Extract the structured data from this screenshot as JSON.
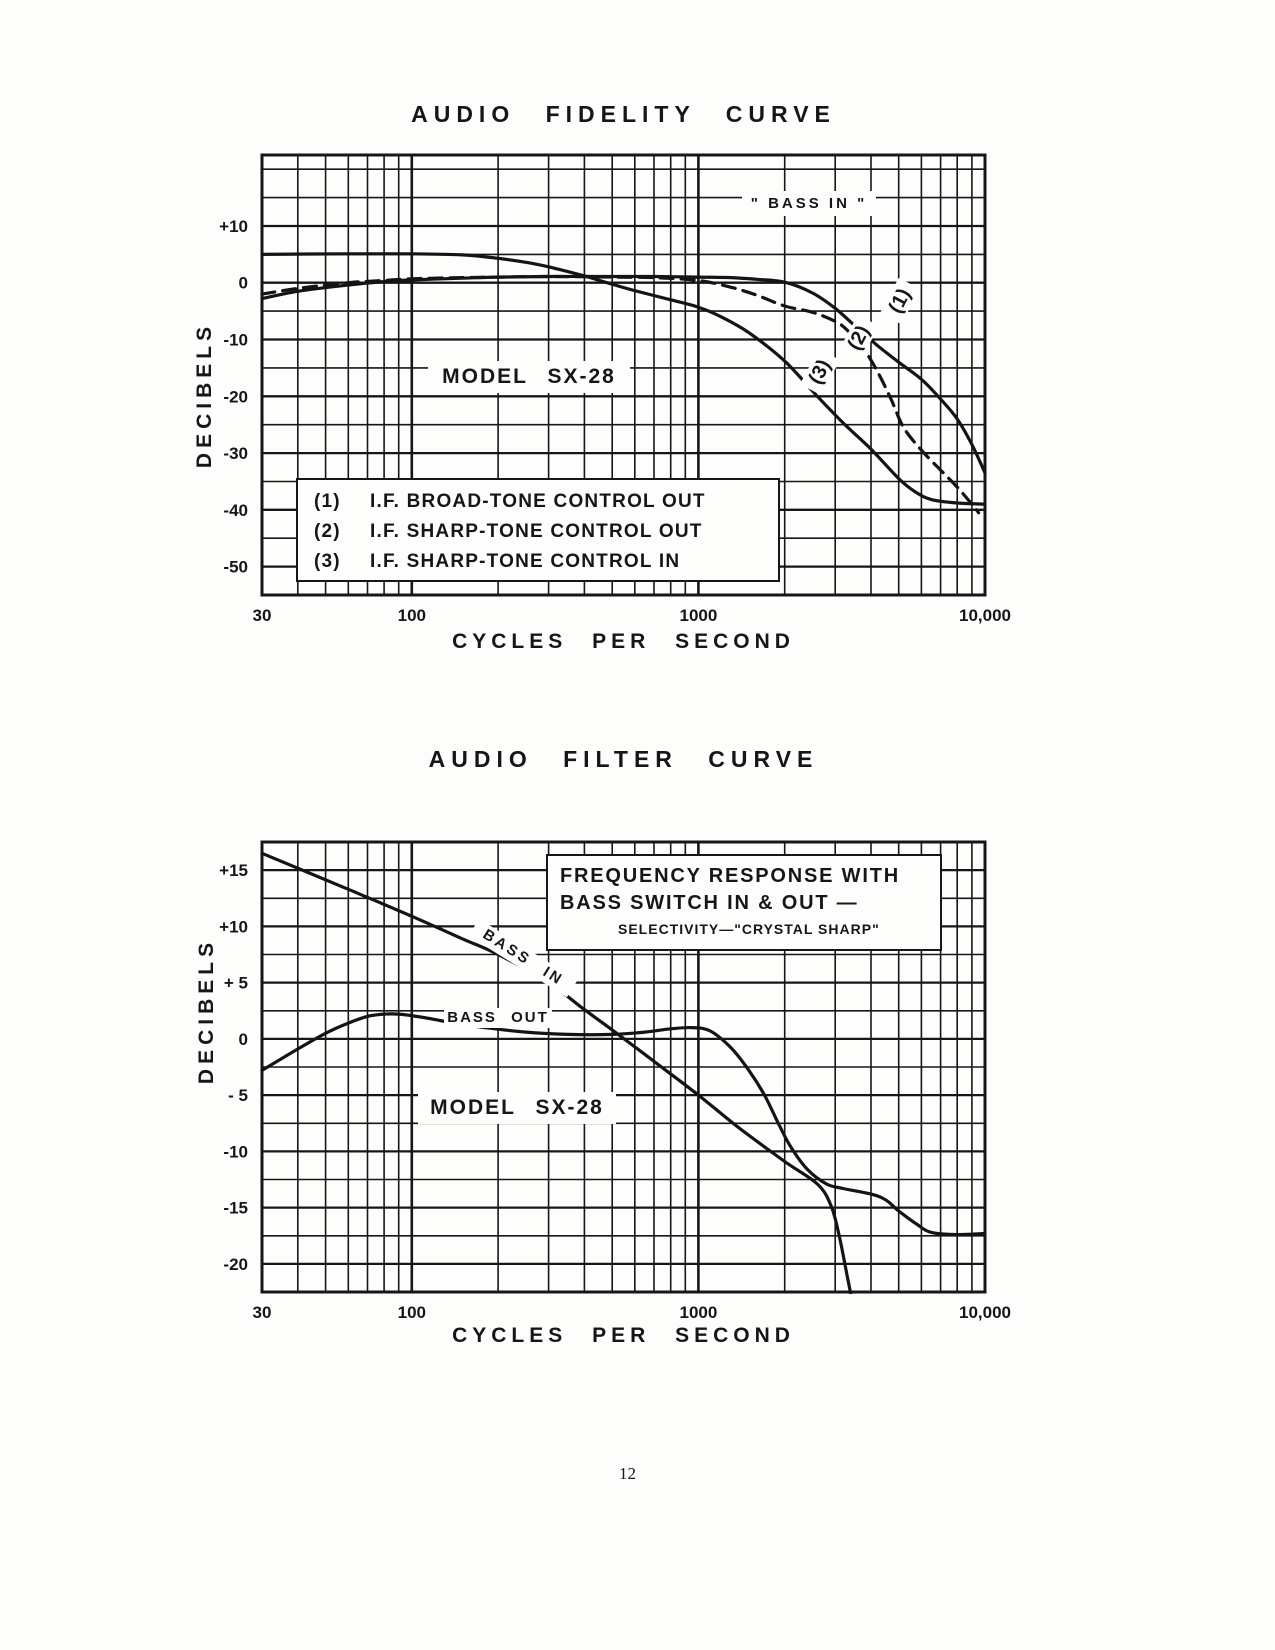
{
  "page": {
    "number": "12"
  },
  "chart_data": [
    {
      "type": "line",
      "title": "AUDIO FIDELITY CURVE",
      "xlabel": "CYCLES PER SECOND",
      "ylabel": "DECIBELS",
      "x_scale": "log",
      "xlim": [
        30,
        10000
      ],
      "ylim": [
        -55,
        22.5
      ],
      "y_grid_step": 5,
      "grid": true,
      "legend_position": "inside-lower-left",
      "x_ticks": [
        {
          "value": 30,
          "label": "30"
        },
        {
          "value": 100,
          "label": "100"
        },
        {
          "value": 1000,
          "label": "1000"
        },
        {
          "value": 10000,
          "label": "10,000"
        }
      ],
      "y_ticks": [
        {
          "value": 10,
          "label": "+10"
        },
        {
          "value": 0,
          "label": "0"
        },
        {
          "value": -10,
          "label": "-10"
        },
        {
          "value": -20,
          "label": "-20"
        },
        {
          "value": -30,
          "label": "-30"
        },
        {
          "value": -40,
          "label": "-40"
        },
        {
          "value": -50,
          "label": "-50"
        }
      ],
      "annotations": {
        "bass_in_note": "\" BASS IN \"",
        "model": "MODEL SX-28",
        "curve_tags": [
          "(1)",
          "(2)",
          "(3)"
        ]
      },
      "legend": [
        {
          "tag": "(1)",
          "text": "I.F. BROAD-TONE CONTROL OUT"
        },
        {
          "tag": "(2)",
          "text": "I.F. SHARP-TONE CONTROL OUT"
        },
        {
          "tag": "(3)",
          "text": "I.F. SHARP-TONE CONTROL IN"
        }
      ],
      "series": [
        {
          "name": "(1) I.F. BROAD - TONE CONTROL OUT",
          "line": "solid",
          "points": [
            [
              30,
              -2.8
            ],
            [
              40,
              -1.5
            ],
            [
              60,
              -0.4
            ],
            [
              80,
              0.2
            ],
            [
              100,
              0.5
            ],
            [
              150,
              0.8
            ],
            [
              200,
              1.0
            ],
            [
              300,
              1.1
            ],
            [
              500,
              1.1
            ],
            [
              700,
              1.1
            ],
            [
              1000,
              1.0
            ],
            [
              1300,
              0.9
            ],
            [
              1600,
              0.6
            ],
            [
              2000,
              0.1
            ],
            [
              2500,
              -1.8
            ],
            [
              3000,
              -4.5
            ],
            [
              3500,
              -7.5
            ],
            [
              4200,
              -11
            ],
            [
              5000,
              -14
            ],
            [
              6000,
              -17
            ],
            [
              7000,
              -20.5
            ],
            [
              8000,
              -24
            ],
            [
              9000,
              -28.5
            ],
            [
              10000,
              -33.5
            ]
          ]
        },
        {
          "name": "(2) I.F. SHARP - TONE CONTROL OUT",
          "line": "dashed",
          "points": [
            [
              30,
              -2.0
            ],
            [
              40,
              -1.0
            ],
            [
              60,
              0.0
            ],
            [
              80,
              0.4
            ],
            [
              100,
              0.7
            ],
            [
              150,
              0.9
            ],
            [
              200,
              1.0
            ],
            [
              300,
              1.1
            ],
            [
              500,
              1.0
            ],
            [
              700,
              0.9
            ],
            [
              1000,
              0.4
            ],
            [
              1300,
              -0.8
            ],
            [
              1600,
              -2.2
            ],
            [
              2000,
              -4.1
            ],
            [
              2500,
              -5.2
            ],
            [
              3000,
              -6.8
            ],
            [
              3300,
              -8.3
            ],
            [
              3700,
              -11
            ],
            [
              4200,
              -15.5
            ],
            [
              4700,
              -20.5
            ],
            [
              5200,
              -25.5
            ],
            [
              6000,
              -29.5
            ],
            [
              7000,
              -33
            ],
            [
              8000,
              -36
            ],
            [
              9000,
              -39
            ],
            [
              9500,
              -40.5
            ]
          ]
        },
        {
          "name": "(3) I.F. SHARP - TONE CONTROL IN",
          "line": "solid",
          "points": [
            [
              30,
              5.0
            ],
            [
              60,
              5.1
            ],
            [
              100,
              5.1
            ],
            [
              150,
              4.9
            ],
            [
              200,
              4.3
            ],
            [
              250,
              3.6
            ],
            [
              300,
              2.8
            ],
            [
              400,
              1.2
            ],
            [
              480,
              0.0
            ],
            [
              600,
              -1.4
            ],
            [
              800,
              -3.0
            ],
            [
              1000,
              -4.3
            ],
            [
              1200,
              -6.0
            ],
            [
              1500,
              -8.8
            ],
            [
              2000,
              -13.8
            ],
            [
              2600,
              -20.0
            ],
            [
              3200,
              -24.7
            ],
            [
              4000,
              -29.3
            ],
            [
              5000,
              -34.5
            ],
            [
              5700,
              -36.8
            ],
            [
              6500,
              -38.2
            ],
            [
              8000,
              -38.8
            ],
            [
              10000,
              -39.0
            ]
          ]
        }
      ]
    },
    {
      "type": "line",
      "title": "AUDIO FILTER CURVE",
      "xlabel": "CYCLES PER SECOND",
      "ylabel": "DECIBELS",
      "x_scale": "log",
      "xlim": [
        30,
        10000
      ],
      "ylim": [
        -22.5,
        17.5
      ],
      "y_grid_step": 2.5,
      "grid": true,
      "x_ticks": [
        {
          "value": 30,
          "label": "30"
        },
        {
          "value": 100,
          "label": "100"
        },
        {
          "value": 1000,
          "label": "1000"
        },
        {
          "value": 10000,
          "label": "10,000"
        }
      ],
      "y_ticks": [
        {
          "value": 15,
          "label": "+15"
        },
        {
          "value": 10,
          "label": "+10"
        },
        {
          "value": 5,
          "label": "+ 5"
        },
        {
          "value": 0,
          "label": "0"
        },
        {
          "value": -5,
          "label": "- 5"
        },
        {
          "value": -10,
          "label": "-10"
        },
        {
          "value": -15,
          "label": "-15"
        },
        {
          "value": -20,
          "label": "-20"
        }
      ],
      "annotations": {
        "box_line1": "FREQUENCY RESPONSE WITH",
        "box_line2": "BASS SWITCH IN & OUT —",
        "box_line3": "SELECTIVITY—\"CRYSTAL SHARP\"",
        "model": "MODEL SX-28"
      },
      "series": [
        {
          "name": "BASS IN",
          "label": "BASS IN",
          "line": "solid",
          "points": [
            [
              30,
              16.5
            ],
            [
              60,
              13.3
            ],
            [
              100,
              10.9
            ],
            [
              150,
              8.9
            ],
            [
              200,
              7.5
            ],
            [
              300,
              5.0
            ],
            [
              400,
              2.6
            ],
            [
              500,
              0.8
            ],
            [
              700,
              -2.0
            ],
            [
              1000,
              -5.0
            ],
            [
              1400,
              -8.0
            ],
            [
              2000,
              -10.9
            ],
            [
              2600,
              -12.9
            ],
            [
              2900,
              -14.8
            ],
            [
              3100,
              -17.5
            ],
            [
              3300,
              -21.0
            ],
            [
              3420,
              -23.0
            ]
          ]
        },
        {
          "name": "BASS OUT",
          "label": "BASS OUT",
          "line": "solid",
          "points": [
            [
              30,
              -2.8
            ],
            [
              40,
              -0.9
            ],
            [
              50,
              0.5
            ],
            [
              60,
              1.4
            ],
            [
              70,
              2.0
            ],
            [
              80,
              2.2
            ],
            [
              90,
              2.2
            ],
            [
              110,
              1.9
            ],
            [
              140,
              1.4
            ],
            [
              180,
              1.0
            ],
            [
              250,
              0.6
            ],
            [
              350,
              0.4
            ],
            [
              500,
              0.4
            ],
            [
              650,
              0.6
            ],
            [
              800,
              0.9
            ],
            [
              950,
              1.0
            ],
            [
              1100,
              0.7
            ],
            [
              1300,
              -0.8
            ],
            [
              1500,
              -2.8
            ],
            [
              1700,
              -5.0
            ],
            [
              1900,
              -7.5
            ],
            [
              2100,
              -9.6
            ],
            [
              2400,
              -11.6
            ],
            [
              2800,
              -12.9
            ],
            [
              3200,
              -13.3
            ],
            [
              4000,
              -13.8
            ],
            [
              4500,
              -14.3
            ],
            [
              5000,
              -15.3
            ],
            [
              5800,
              -16.5
            ],
            [
              6500,
              -17.2
            ],
            [
              8000,
              -17.4
            ],
            [
              10000,
              -17.3
            ]
          ]
        }
      ]
    }
  ]
}
